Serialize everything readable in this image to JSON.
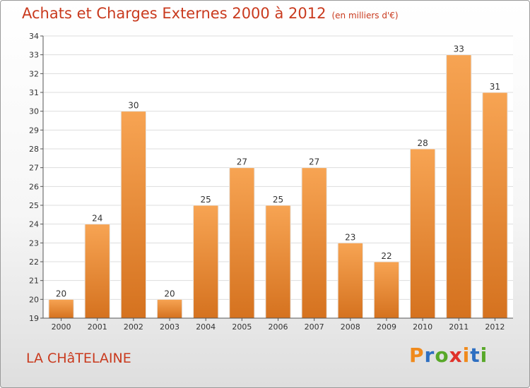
{
  "header": {
    "title": "Achats et Charges Externes 2000 à 2012",
    "unit": "(en milliers d'€)"
  },
  "footer": {
    "commune": "LA CHâTELAINE",
    "logo": "Proxiti"
  },
  "colors": {
    "title": "#c93a1e",
    "bar_top": "#f7a453",
    "bar_bottom": "#d5721f",
    "logo_letters": [
      "#f08a1c",
      "#2e6fc1",
      "#58a829",
      "#e0322a",
      "#f08a1c",
      "#2e6fc1",
      "#58a829"
    ]
  },
  "chart_data": {
    "type": "bar",
    "title": "Achats et Charges Externes 2000 à 2012",
    "subtitle": "(en milliers d'€)",
    "categories": [
      "2000",
      "2001",
      "2002",
      "2003",
      "2004",
      "2005",
      "2006",
      "2007",
      "2008",
      "2009",
      "2010",
      "2011",
      "2012"
    ],
    "values": [
      20,
      24,
      30,
      20,
      25,
      27,
      25,
      27,
      23,
      22,
      28,
      33,
      31
    ],
    "data_labels": [
      "20",
      "24",
      "30",
      "20",
      "25",
      "27",
      "25",
      "27",
      "23",
      "22",
      "28",
      "33",
      "31"
    ],
    "ylim": [
      19,
      34
    ],
    "yticks": [
      "19",
      "20",
      "21",
      "22",
      "23",
      "24",
      "25",
      "26",
      "27",
      "28",
      "29",
      "30",
      "31",
      "32",
      "33",
      "34"
    ],
    "grid": true,
    "xlabel": "",
    "ylabel": ""
  }
}
